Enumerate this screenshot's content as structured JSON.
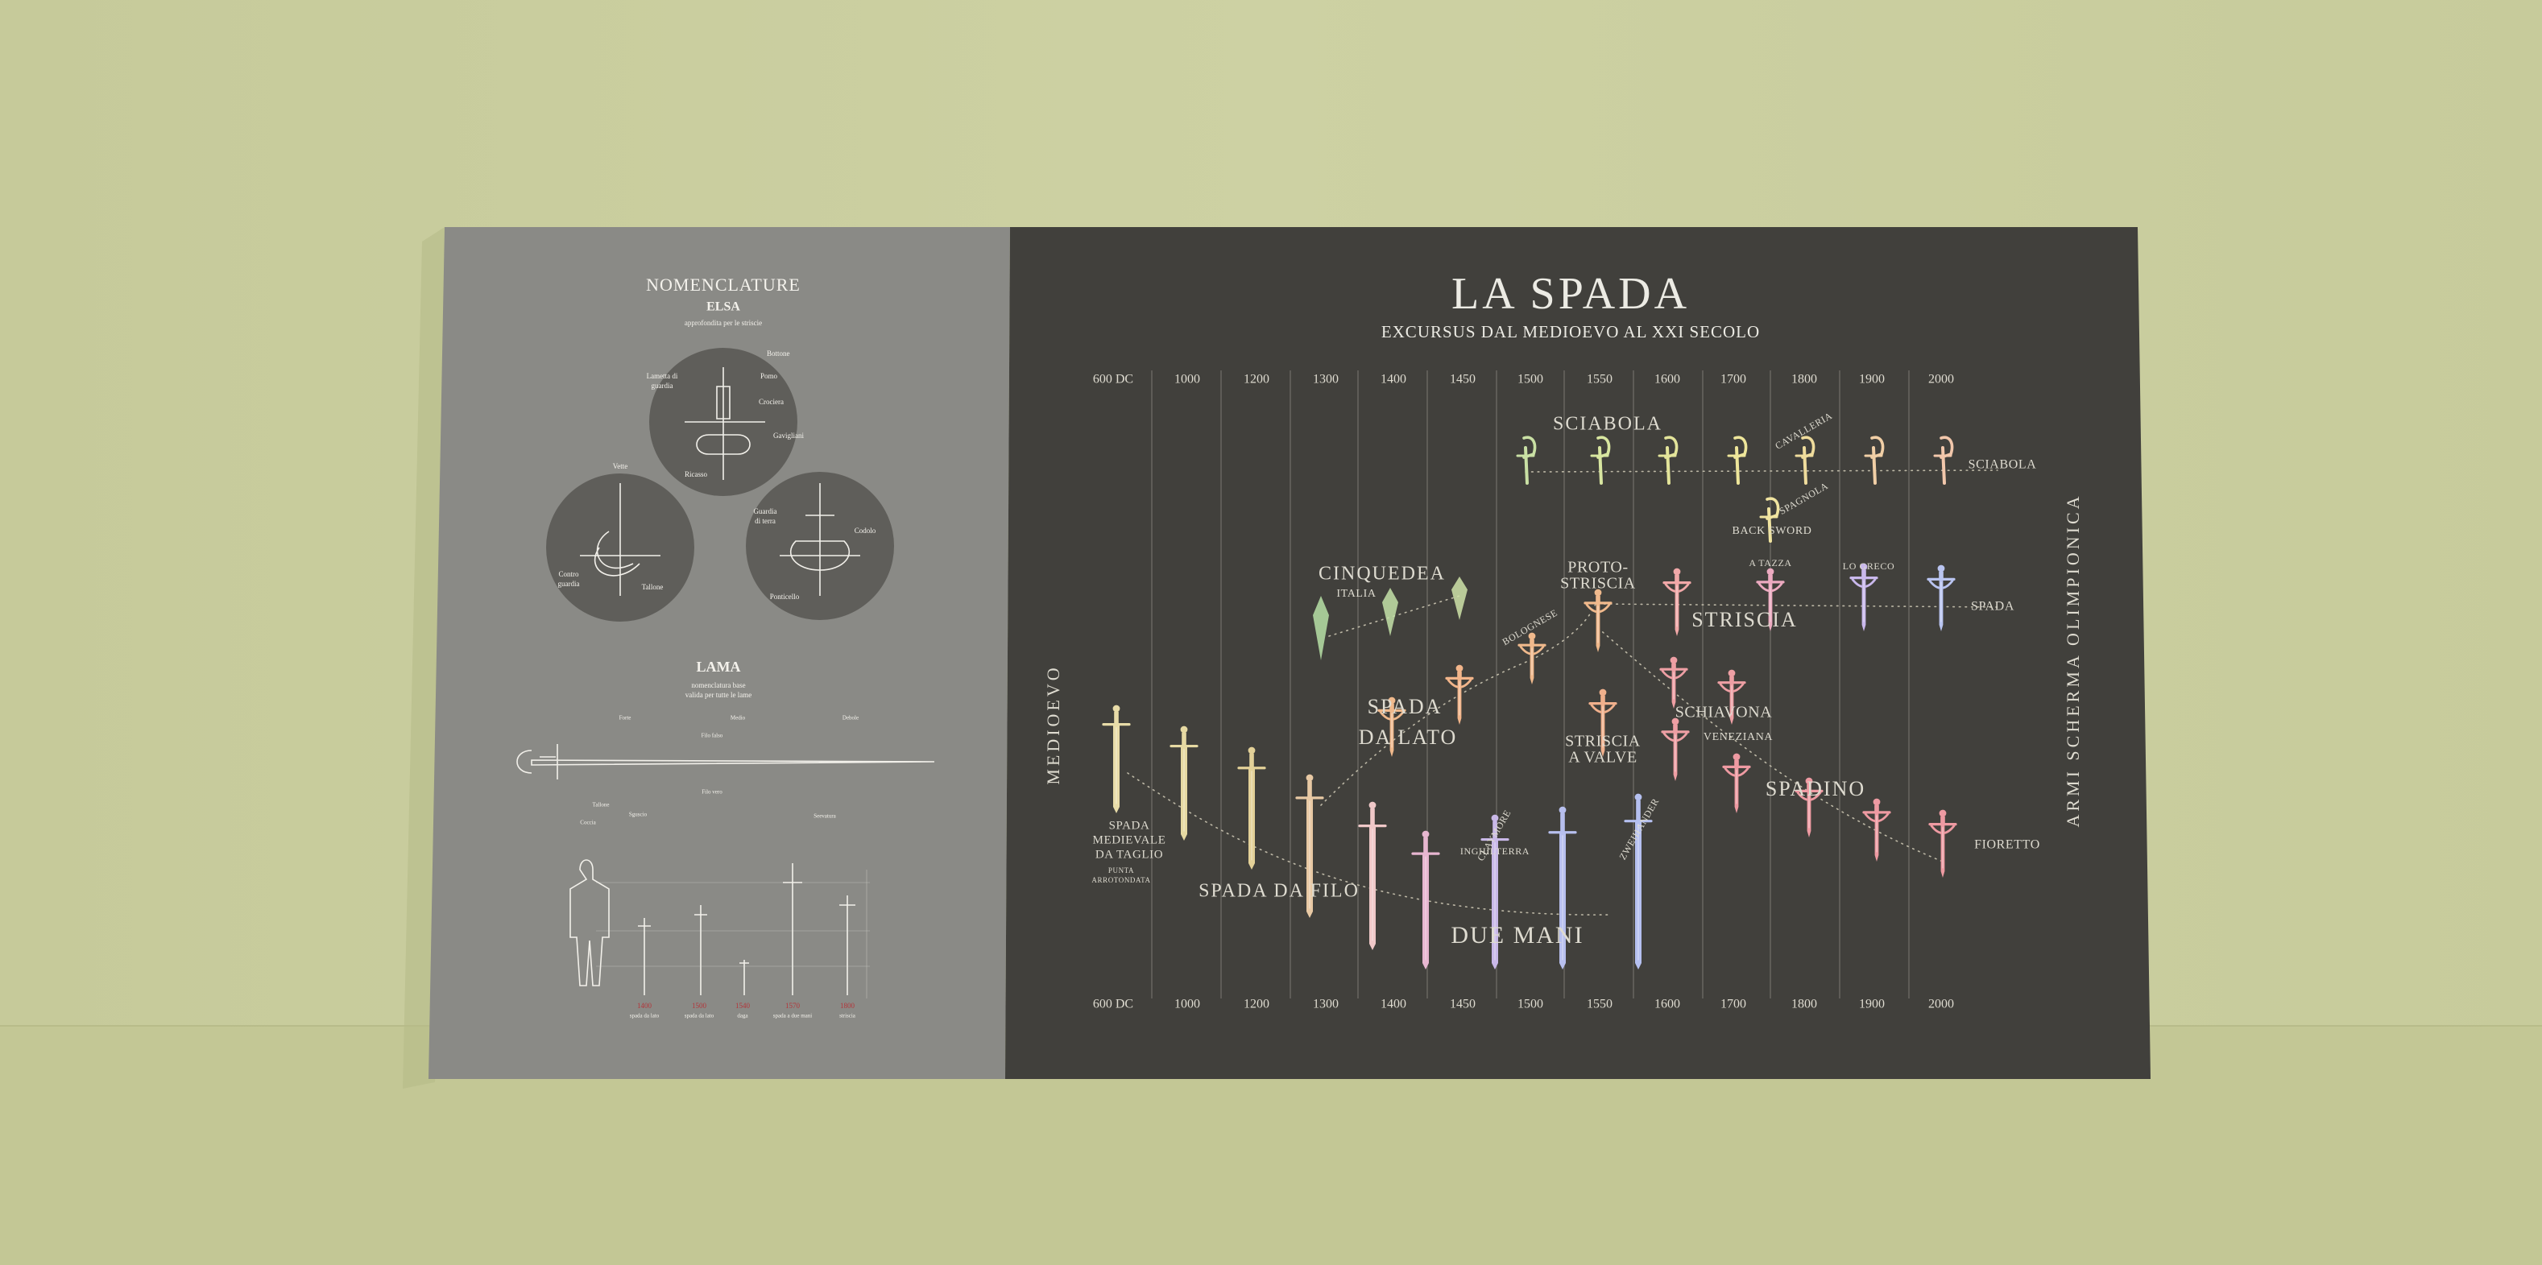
{
  "nomenclature": {
    "title": "NOMENCLATURE",
    "elsa": {
      "title": "ELSA",
      "subtitle": "approfondita per le striscie",
      "labels": [
        "Bottone",
        "Pomo",
        "Crociera",
        "Gavigliani",
        "Lametta di",
        "guardia",
        "Ricasso",
        "Vette",
        "Contro",
        "guardia",
        "Tallone",
        "Guardia",
        "di terra",
        "Codolo",
        "Ponticello"
      ]
    },
    "lama": {
      "title": "LAMA",
      "subtitle": [
        "nomenclatura base",
        "valida per tutte le lame"
      ],
      "labels": [
        "Forte",
        "Medio",
        "Debole",
        "Filo falso",
        "Filo vero",
        "Tallone",
        "Sguscio",
        "Coccia",
        "Seevatura"
      ]
    },
    "scale": {
      "years": [
        "1400",
        "1500",
        "1540",
        "1570",
        "1800"
      ],
      "names": [
        "spada da lato",
        "spada da lato",
        "daga",
        "spada a due mani",
        "striscia"
      ]
    }
  },
  "poster": {
    "title": "LA SPADA",
    "subtitle": "EXCURSUS DAL MEDIOEVO AL XXI SECOLO",
    "timeline": [
      "600 DC",
      "1000",
      "1200",
      "1300",
      "1400",
      "1450",
      "1500",
      "1550",
      "1600",
      "1700",
      "1800",
      "1900",
      "2000"
    ],
    "left_label": "MEDIOEVO",
    "right_label": "ARMI SCHERMA OLIMPIONICA",
    "labels": [
      "SCIABOLA",
      "SCIABOLA",
      "CAVALLERIA",
      "SPAGNOLA",
      "BACK SWORD",
      "CINQUEDEA",
      "ITALIA",
      "PROTO-",
      "STRISCIA",
      "A TAZZA",
      "LO GRECO",
      "SPADA",
      "STRISCIA",
      "BOLOGNESE",
      "SPADA",
      "DA LATO",
      "SCHIAVONA",
      "VENEZIANA",
      "STRISCIA",
      "A VALVE",
      "SPADINO",
      "FIORETTO",
      "SPADA",
      "MEDIEVALE",
      "DA TAGLIO",
      "PUNTA",
      "ARROTONDATA",
      "SPADA  DA FILO",
      "CLAYMORE",
      "INGHILTERRA",
      "ZWEIHANDER",
      "DUE MANI"
    ]
  }
}
